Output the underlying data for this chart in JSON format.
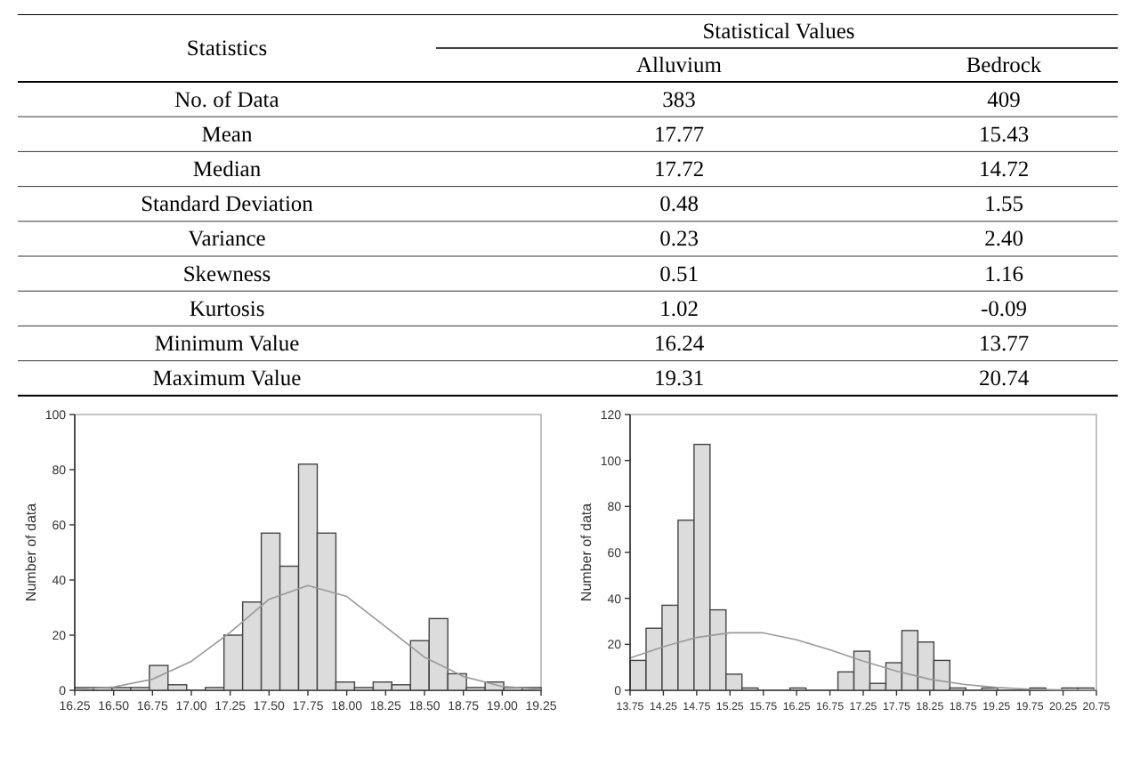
{
  "chart_data": [
    {
      "type": "heatmap",
      "title": "Statistical Values",
      "ylabel": "Statistics",
      "categories": [
        "Alluvium",
        "Bedrock"
      ],
      "y_categories": [
        "No. of Data",
        "Mean",
        "Median",
        "Standard Deviation",
        "Variance",
        "Skewness",
        "Kurtosis",
        "Minimum Value",
        "Maximum Value"
      ],
      "cells": [
        [
          383,
          409
        ],
        [
          17.77,
          15.43
        ],
        [
          17.72,
          14.72
        ],
        [
          0.48,
          1.55
        ],
        [
          0.23,
          2.4
        ],
        [
          0.51,
          1.16
        ],
        [
          1.02,
          -0.09
        ],
        [
          16.24,
          13.77
        ],
        [
          19.31,
          20.74
        ]
      ],
      "cell_labels": [
        [
          "383",
          "409"
        ],
        [
          "17.77",
          "15.43"
        ],
        [
          "17.72",
          "14.72"
        ],
        [
          "0.48",
          "1.55"
        ],
        [
          "0.23",
          "2.40"
        ],
        [
          "0.51",
          "1.16"
        ],
        [
          "1.02",
          "-0.09"
        ],
        [
          "16.24",
          "13.77"
        ],
        [
          "19.31",
          "20.74"
        ]
      ]
    },
    {
      "type": "histogram",
      "ylabel": "Number of data",
      "color": "#dcdcdc",
      "bins": [
        16.25,
        16.37,
        16.49,
        16.61,
        16.73,
        16.85,
        16.97,
        17.09,
        17.21,
        17.33,
        17.45,
        17.57,
        17.69,
        17.81,
        17.93,
        18.05,
        18.17,
        18.29,
        18.41,
        18.53,
        18.65,
        18.77,
        18.89,
        19.01,
        19.13,
        19.25
      ],
      "values": [
        1,
        1,
        1,
        1,
        9,
        2,
        0,
        1,
        20,
        32,
        57,
        45,
        82,
        57,
        3,
        1,
        3,
        2,
        18,
        26,
        6,
        1,
        3,
        1,
        1
      ],
      "series": [
        {
          "type": "line",
          "color": "#999999",
          "x": [
            16.25,
            16.5,
            16.75,
            17.0,
            17.25,
            17.5,
            17.75,
            18.0,
            18.25,
            18.5,
            18.75,
            19.0,
            19.25
          ],
          "values": [
            0.3,
            1.2,
            4,
            10.5,
            21,
            33,
            38,
            34,
            23,
            12,
            5,
            1.4,
            0.3
          ]
        }
      ],
      "xlim": [
        16.25,
        19.25
      ],
      "ylim": [
        0,
        100
      ],
      "xticks": [
        16.25,
        {
          "value": 16.5,
          "label": "16.50"
        },
        16.75,
        {
          "value": 17,
          "label": "17.00"
        },
        17.25,
        {
          "value": 17.5,
          "label": "17.50"
        },
        17.75,
        {
          "value": 18,
          "label": "18.00"
        },
        18.25,
        {
          "value": 18.5,
          "label": "18.50"
        },
        18.75,
        {
          "value": 19,
          "label": "19.00"
        },
        19.25
      ],
      "yticks": [
        0,
        20,
        40,
        60,
        80,
        100
      ]
    },
    {
      "type": "histogram",
      "ylabel": "Number of data",
      "color": "#dcdcdc",
      "bins": [
        13.75,
        13.99,
        14.23,
        14.47,
        14.71,
        14.95,
        15.19,
        15.43,
        15.67,
        15.91,
        16.15,
        16.39,
        16.63,
        16.87,
        17.11,
        17.35,
        17.59,
        17.83,
        18.07,
        18.31,
        18.55,
        18.79,
        19.03,
        19.27,
        19.51,
        19.75,
        19.99,
        20.23,
        20.47,
        20.71
      ],
      "values": [
        13,
        27,
        37,
        74,
        107,
        35,
        7,
        1,
        0,
        0,
        1,
        0,
        0,
        8,
        17,
        3,
        12,
        26,
        21,
        13,
        1,
        0,
        1,
        0,
        0,
        1,
        0,
        1,
        1
      ],
      "series": [
        {
          "type": "line",
          "color": "#999999",
          "x": [
            13.75,
            14.25,
            14.75,
            15.25,
            15.75,
            16.25,
            16.75,
            17.25,
            17.75,
            18.25,
            18.75,
            19.25,
            19.75,
            20.25,
            20.75
          ],
          "values": [
            14,
            19,
            23,
            25,
            25,
            22,
            17.6,
            12.7,
            8.3,
            4.8,
            2.6,
            1.2,
            0.5,
            0.2,
            0.1
          ]
        }
      ],
      "xlim": [
        13.75,
        20.75
      ],
      "ylim": [
        0,
        120
      ],
      "xticks": [
        13.75,
        {
          "value": 14.25,
          "label": "14.25"
        },
        14.75,
        15.25,
        15.75,
        16.25,
        16.75,
        17.25,
        17.75,
        18.25,
        18.75,
        19.25,
        19.75,
        20.25,
        20.75
      ],
      "yticks": [
        0,
        20,
        40,
        60,
        80,
        100,
        120
      ]
    }
  ]
}
